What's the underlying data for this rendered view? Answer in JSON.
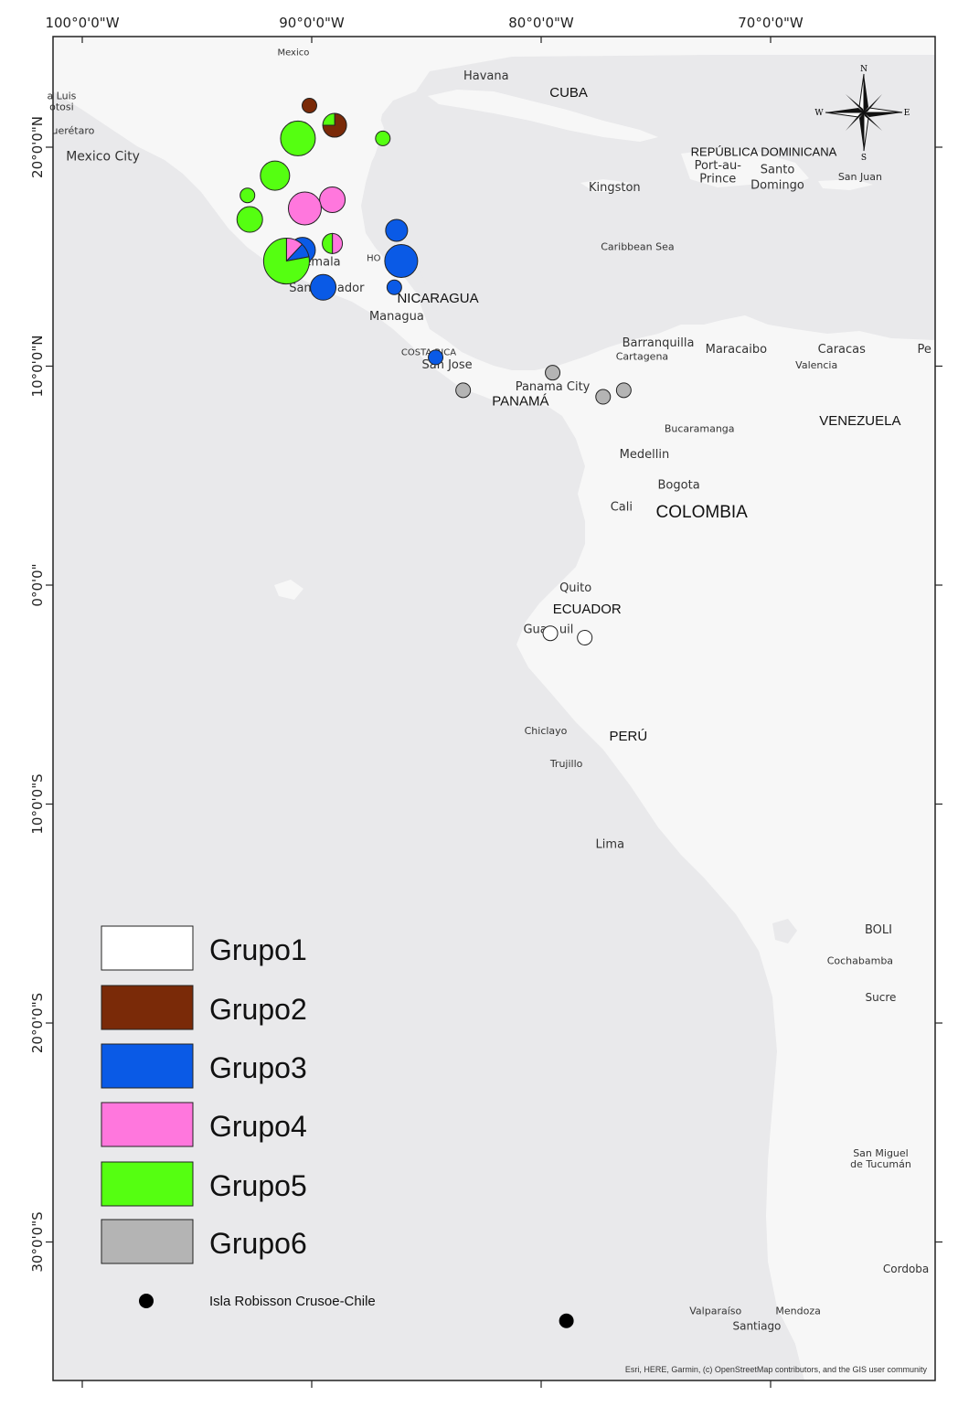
{
  "axes": {
    "top": [
      "100°0'0\"W",
      "90°0'0\"W",
      "80°0'0\"W",
      "70°0'0\"W"
    ],
    "left": [
      "20°0'0\"N",
      "10°0'0\"N",
      "0°0'0\"",
      "10°0'0\"S",
      "20°0'0\"S",
      "30°0'0\"S"
    ]
  },
  "places": [
    {
      "name": "Havana",
      "lon": -82.4,
      "lat": 23.1,
      "size": 13
    },
    {
      "name": "Mexico City",
      "lon": -99.1,
      "lat": 19.4,
      "size": 14
    },
    {
      "name": "uerétaro",
      "lon": -100.4,
      "lat": 20.6,
      "size": 11
    },
    {
      "name": "a Luis",
      "lon": -100.9,
      "lat": 22.2,
      "size": 11
    },
    {
      "name": "otosi",
      "lon": -100.9,
      "lat": 21.7,
      "size": 11
    },
    {
      "name": "Mexico",
      "lon": -90.8,
      "lat": 24.2,
      "size": 10
    },
    {
      "name": "Kingston",
      "lon": -76.8,
      "lat": 18.0,
      "size": 13
    },
    {
      "name": "Port-au-",
      "lon": -72.3,
      "lat": 19.0,
      "size": 13
    },
    {
      "name": "Prince",
      "lon": -72.3,
      "lat": 18.4,
      "size": 13
    },
    {
      "name": "Santo",
      "lon": -69.7,
      "lat": 18.8,
      "size": 13
    },
    {
      "name": "Domingo",
      "lon": -69.7,
      "lat": 18.1,
      "size": 13
    },
    {
      "name": "San Juan",
      "lon": -66.1,
      "lat": 18.5,
      "size": 11
    },
    {
      "name": "Caribbean Sea",
      "lon": -75.8,
      "lat": 15.3,
      "size": 11
    },
    {
      "name": "atemala",
      "lon": -89.8,
      "lat": 14.6,
      "size": 13
    },
    {
      "name": "HO",
      "lon": -87.3,
      "lat": 14.8,
      "size": 10
    },
    {
      "name": "San",
      "lon": -90.5,
      "lat": 13.4,
      "size": 13
    },
    {
      "name": "ador",
      "lon": -88.3,
      "lat": 13.4,
      "size": 13
    },
    {
      "name": "Managua",
      "lon": -86.3,
      "lat": 12.1,
      "size": 13
    },
    {
      "name": "COSTA RICA",
      "lon": -84.9,
      "lat": 10.5,
      "size": 10
    },
    {
      "name": "San Jose",
      "lon": -84.1,
      "lat": 9.9,
      "size": 13
    },
    {
      "name": "Barranquilla",
      "lon": -74.9,
      "lat": 10.9,
      "size": 13
    },
    {
      "name": "Cartagena",
      "lon": -75.6,
      "lat": 10.3,
      "size": 11
    },
    {
      "name": "Maracaibo",
      "lon": -71.5,
      "lat": 10.6,
      "size": 13
    },
    {
      "name": "Caracas",
      "lon": -66.9,
      "lat": 10.6,
      "size": 13
    },
    {
      "name": "Valencia",
      "lon": -68.0,
      "lat": 9.9,
      "size": 11
    },
    {
      "name": "Pe",
      "lon": -63.3,
      "lat": 10.6,
      "size": 13
    },
    {
      "name": "Panama City",
      "lon": -79.5,
      "lat": 8.9,
      "size": 13
    },
    {
      "name": "Bucaramanga",
      "lon": -73.1,
      "lat": 7.0,
      "size": 11
    },
    {
      "name": "Medellin",
      "lon": -75.5,
      "lat": 5.8,
      "size": 13
    },
    {
      "name": "Bogota",
      "lon": -74.0,
      "lat": 4.4,
      "size": 13
    },
    {
      "name": "Cali",
      "lon": -76.5,
      "lat": 3.4,
      "size": 13
    },
    {
      "name": "Quito",
      "lon": -78.5,
      "lat": -0.3,
      "size": 13
    },
    {
      "name": "Guay",
      "lon": -80.1,
      "lat": -2.2,
      "size": 13
    },
    {
      "name": "uil",
      "lon": -78.9,
      "lat": -2.2,
      "size": 13
    },
    {
      "name": "Chiclayo",
      "lon": -79.8,
      "lat": -6.8,
      "size": 11
    },
    {
      "name": "Trujillo",
      "lon": -78.9,
      "lat": -8.3,
      "size": 11
    },
    {
      "name": "Lima",
      "lon": -77.0,
      "lat": -12.0,
      "size": 13
    },
    {
      "name": "BOLI",
      "lon": -65.3,
      "lat": -15.9,
      "size": 13
    },
    {
      "name": "Cochabamba",
      "lon": -66.1,
      "lat": -17.3,
      "size": 11
    },
    {
      "name": "Sucre",
      "lon": -65.2,
      "lat": -19.0,
      "size": 12
    },
    {
      "name": "San Miguel",
      "lon": -65.2,
      "lat": -26.1,
      "size": 11
    },
    {
      "name": "de Tucumán",
      "lon": -65.2,
      "lat": -26.6,
      "size": 11
    },
    {
      "name": "Cordoba",
      "lon": -64.1,
      "lat": -31.4,
      "size": 12
    },
    {
      "name": "Valparaíso",
      "lon": -72.4,
      "lat": -33.3,
      "size": 11
    },
    {
      "name": "Mendoza",
      "lon": -68.8,
      "lat": -33.3,
      "size": 11
    },
    {
      "name": "Santiago",
      "lon": -70.6,
      "lat": -34.0,
      "size": 12
    }
  ],
  "countries": [
    {
      "name": "CUBA",
      "lon": -78.8,
      "lat": 22.3,
      "size": 15
    },
    {
      "name": "REPÚBLICA DOMINICANA",
      "lon": -70.3,
      "lat": 19.6,
      "size": 13
    },
    {
      "name": "NICARAGUA",
      "lon": -84.5,
      "lat": 12.9,
      "size": 15
    },
    {
      "name": "PANAMÁ",
      "lon": -80.9,
      "lat": 8.2,
      "size": 15
    },
    {
      "name": "VENEZUELA",
      "lon": -66.1,
      "lat": 7.3,
      "size": 15
    },
    {
      "name": "COLOMBIA",
      "lon": -73.0,
      "lat": 3.1,
      "size": 19
    },
    {
      "name": "ECUADOR",
      "lon": -78.0,
      "lat": -1.3,
      "size": 15
    },
    {
      "name": "PERÚ",
      "lon": -76.2,
      "lat": -7.1,
      "size": 15
    }
  ],
  "groups": [
    {
      "id": "g1",
      "label": "Grupo1",
      "color": "#ffffff"
    },
    {
      "id": "g2",
      "label": "Grupo2",
      "color": "#7a2a08"
    },
    {
      "id": "g3",
      "label": "Grupo3",
      "color": "#0a5ae6"
    },
    {
      "id": "g4",
      "label": "Grupo4",
      "color": "#ff77dd"
    },
    {
      "id": "g5",
      "label": "Grupo5",
      "color": "#55ff11"
    },
    {
      "id": "g6",
      "label": "Grupo6",
      "color": "#b4b4b4"
    }
  ],
  "island_label": "Isla Robisson Crusoe-Chile",
  "island_point": {
    "lon": -78.9,
    "lat": -33.6
  },
  "sites": [
    {
      "lon": -90.1,
      "lat": 21.9,
      "r": 8,
      "slices": [
        {
          "g": "g2",
          "v": 1
        }
      ]
    },
    {
      "lon": -89.0,
      "lat": 21.0,
      "r": 13,
      "slices": [
        {
          "g": "g2",
          "v": 0.75
        },
        {
          "g": "g5",
          "v": 0.25
        }
      ]
    },
    {
      "lon": -90.6,
      "lat": 20.4,
      "r": 19,
      "slices": [
        {
          "g": "g5",
          "v": 1
        }
      ]
    },
    {
      "lon": -86.9,
      "lat": 20.4,
      "r": 8,
      "slices": [
        {
          "g": "g5",
          "v": 1
        }
      ]
    },
    {
      "lon": -91.6,
      "lat": 18.7,
      "r": 16,
      "slices": [
        {
          "g": "g5",
          "v": 1
        }
      ]
    },
    {
      "lon": -92.8,
      "lat": 17.8,
      "r": 8,
      "slices": [
        {
          "g": "g5",
          "v": 1
        }
      ]
    },
    {
      "lon": -89.1,
      "lat": 17.6,
      "r": 14,
      "slices": [
        {
          "g": "g4",
          "v": 1
        }
      ]
    },
    {
      "lon": -90.3,
      "lat": 17.2,
      "r": 18,
      "slices": [
        {
          "g": "g4",
          "v": 1
        }
      ]
    },
    {
      "lon": -92.7,
      "lat": 16.7,
      "r": 14,
      "slices": [
        {
          "g": "g5",
          "v": 1
        }
      ]
    },
    {
      "lon": -86.3,
      "lat": 16.2,
      "r": 12,
      "slices": [
        {
          "g": "g3",
          "v": 1
        }
      ]
    },
    {
      "lon": -89.1,
      "lat": 15.6,
      "r": 11,
      "slices": [
        {
          "g": "g4",
          "v": 0.5
        },
        {
          "g": "g5",
          "v": 0.5
        }
      ]
    },
    {
      "lon": -90.4,
      "lat": 15.3,
      "r": 14,
      "slices": [
        {
          "g": "g3",
          "v": 1
        }
      ]
    },
    {
      "lon": -91.1,
      "lat": 14.8,
      "r": 25,
      "slices": [
        {
          "g": "g4",
          "v": 0.12
        },
        {
          "g": "g3",
          "v": 0.1
        },
        {
          "g": "g5",
          "v": 0.78
        }
      ]
    },
    {
      "lon": -86.1,
      "lat": 14.8,
      "r": 18,
      "slices": [
        {
          "g": "g3",
          "v": 1
        }
      ]
    },
    {
      "lon": -89.5,
      "lat": 13.6,
      "r": 14,
      "slices": [
        {
          "g": "g3",
          "v": 1
        }
      ]
    },
    {
      "lon": -86.4,
      "lat": 13.6,
      "r": 8,
      "slices": [
        {
          "g": "g3",
          "v": 1
        }
      ]
    },
    {
      "lon": -84.6,
      "lat": 10.4,
      "r": 8,
      "slices": [
        {
          "g": "g3",
          "v": 1
        }
      ]
    },
    {
      "lon": -79.5,
      "lat": 9.7,
      "r": 8,
      "slices": [
        {
          "g": "g6",
          "v": 1
        }
      ]
    },
    {
      "lon": -83.4,
      "lat": 8.9,
      "r": 8,
      "slices": [
        {
          "g": "g6",
          "v": 1
        }
      ]
    },
    {
      "lon": -77.3,
      "lat": 8.6,
      "r": 8,
      "slices": [
        {
          "g": "g6",
          "v": 1
        }
      ]
    },
    {
      "lon": -76.4,
      "lat": 8.9,
      "r": 8,
      "slices": [
        {
          "g": "g6",
          "v": 1
        }
      ]
    },
    {
      "lon": -79.6,
      "lat": -2.2,
      "r": 8,
      "slices": [
        {
          "g": "g1",
          "v": 1
        }
      ]
    },
    {
      "lon": -78.1,
      "lat": -2.4,
      "r": 8,
      "slices": [
        {
          "g": "g1",
          "v": 1
        }
      ]
    }
  ],
  "compass": {
    "n": "N",
    "s": "S",
    "e": "E",
    "w": "W"
  },
  "attribution": "Esri, HERE, Garmin, (c) OpenStreetMap contributors, and the GIS user community"
}
